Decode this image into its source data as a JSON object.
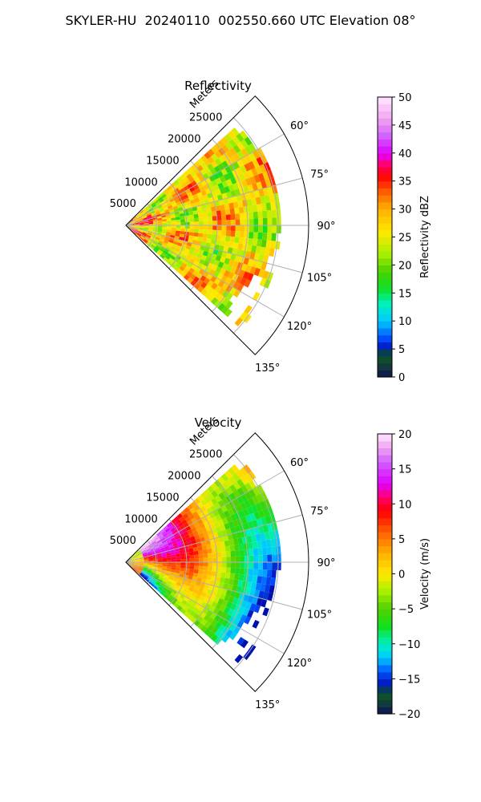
{
  "figure_title": "SKYLER-HU  20240110  002550.660 UTC Elevation 08°",
  "chart_data": [
    {
      "type": "heatmap",
      "projection": "polar-sector",
      "title": "Reflectivity",
      "radial_axis_label": "Meters",
      "radial_ticks": [
        5000,
        10000,
        15000,
        20000,
        25000
      ],
      "radial_tick_labels": [
        "5000",
        "10000",
        "15000",
        "20000",
        "25000"
      ],
      "angle_ticks": [
        60,
        75,
        90,
        105,
        120,
        135
      ],
      "angle_tick_labels": [
        "60°",
        "75°",
        "90°",
        "105°",
        "120°",
        "135°"
      ],
      "angle_range_deg": [
        45,
        135
      ],
      "radial_range_m": [
        0,
        30000
      ],
      "grid": true,
      "colorbar": {
        "label": "Reflectivity dBZ",
        "range": [
          0,
          50
        ],
        "ticks": [
          0,
          5,
          10,
          15,
          20,
          25,
          30,
          35,
          40,
          45,
          50
        ],
        "tick_labels": [
          "0",
          "5",
          "10",
          "15",
          "20",
          "25",
          "30",
          "35",
          "40",
          "45",
          "50"
        ],
        "stops": [
          {
            "v": 0,
            "color": "#0b1450"
          },
          {
            "v": 2,
            "color": "#123c3c"
          },
          {
            "v": 4,
            "color": "#0d5a1e"
          },
          {
            "v": 5,
            "color": "#0010b0"
          },
          {
            "v": 7,
            "color": "#0050ff"
          },
          {
            "v": 10,
            "color": "#00c8ff"
          },
          {
            "v": 13,
            "color": "#00f0c0"
          },
          {
            "v": 16,
            "color": "#10e020"
          },
          {
            "v": 19,
            "color": "#50d000"
          },
          {
            "v": 22,
            "color": "#a8f000"
          },
          {
            "v": 26,
            "color": "#ffe800"
          },
          {
            "v": 30,
            "color": "#ffb000"
          },
          {
            "v": 33,
            "color": "#ff6000"
          },
          {
            "v": 36,
            "color": "#ff0000"
          },
          {
            "v": 38,
            "color": "#ff0070"
          },
          {
            "v": 40,
            "color": "#e000ff"
          },
          {
            "v": 43,
            "color": "#d060ff"
          },
          {
            "v": 46,
            "color": "#f0a0f0"
          },
          {
            "v": 50,
            "color": "#ffe8ff"
          }
        ]
      },
      "field_summary": {
        "typical_dbz": 27,
        "max_dbz": 37,
        "min_dbz": 18,
        "max_range_m": 25500
      }
    },
    {
      "type": "heatmap",
      "projection": "polar-sector",
      "title": "Velocity",
      "radial_axis_label": "Meters",
      "radial_ticks": [
        5000,
        10000,
        15000,
        20000,
        25000
      ],
      "radial_tick_labels": [
        "5000",
        "10000",
        "15000",
        "20000",
        "25000"
      ],
      "angle_ticks": [
        60,
        75,
        90,
        105,
        120,
        135
      ],
      "angle_tick_labels": [
        "60°",
        "75°",
        "90°",
        "105°",
        "120°",
        "135°"
      ],
      "angle_range_deg": [
        45,
        135
      ],
      "radial_range_m": [
        0,
        30000
      ],
      "grid": true,
      "colorbar": {
        "label": "Velocity (m/s)",
        "range": [
          -20,
          20
        ],
        "ticks": [
          -20,
          -15,
          -10,
          -5,
          0,
          5,
          10,
          15,
          20
        ],
        "tick_labels": [
          "−20",
          "−15",
          "−10",
          "−5",
          "0",
          "5",
          "10",
          "15",
          "20"
        ],
        "stops": [
          {
            "v": -20,
            "color": "#0b1450"
          },
          {
            "v": -18.5,
            "color": "#123c3c"
          },
          {
            "v": -17,
            "color": "#0d5a1e"
          },
          {
            "v": -16,
            "color": "#0010b0"
          },
          {
            "v": -14,
            "color": "#0050ff"
          },
          {
            "v": -12,
            "color": "#00c8ff"
          },
          {
            "v": -10,
            "color": "#00f0c0"
          },
          {
            "v": -7.5,
            "color": "#10e020"
          },
          {
            "v": -5,
            "color": "#50d000"
          },
          {
            "v": -2.5,
            "color": "#a8f000"
          },
          {
            "v": 0,
            "color": "#ffe800"
          },
          {
            "v": 3,
            "color": "#ffb000"
          },
          {
            "v": 6,
            "color": "#ff6000"
          },
          {
            "v": 9,
            "color": "#ff0000"
          },
          {
            "v": 11,
            "color": "#ff0070"
          },
          {
            "v": 13,
            "color": "#e000ff"
          },
          {
            "v": 16,
            "color": "#d060ff"
          },
          {
            "v": 18,
            "color": "#f0a0f0"
          },
          {
            "v": 20,
            "color": "#ffe8ff"
          }
        ]
      },
      "field_summary": {
        "min_ms": -16,
        "max_ms": 19,
        "max_range_m": 25500
      }
    }
  ]
}
